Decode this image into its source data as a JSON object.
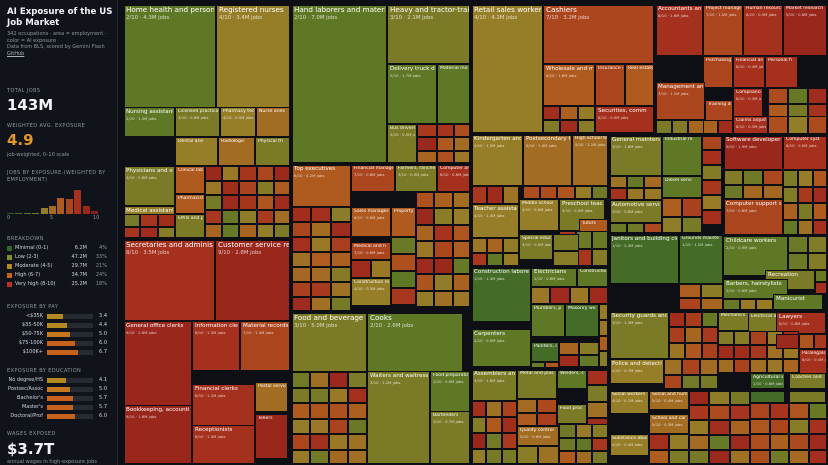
{
  "sidebar": {
    "title": "AI Exposure of the US Job Market",
    "description": "342 occupations · area = employment · color = AI exposure",
    "source": "Data from BLS, scored by Gemini Flash",
    "github": "GitHub",
    "total_jobs_label": "TOTAL JOBS",
    "total_jobs_value": "143M",
    "weighted_label": "WEIGHTED AVG. EXPOSURE",
    "weighted_value": "4.9",
    "weighted_note": "job-weighted, 0–10 scale",
    "histogram_label": "JOBS BY EXPOSURE (WEIGHTED BY EMPLOYMENT)",
    "histogram_axis": [
      "0",
      "5",
      "10"
    ],
    "histogram_values": [
      0.2,
      0.5,
      0.6,
      1.0,
      6.0,
      9.0,
      17.0,
      16.0,
      26.0,
      8.5,
      2.8
    ],
    "breakdown_label": "BREAKDOWN",
    "breakdown": [
      {
        "name": "Minimal (0-1)",
        "jobs": "6.2M",
        "pct": "4%",
        "color": "#2f6a2a"
      },
      {
        "name": "Low (2-3)",
        "jobs": "47.2M",
        "pct": "33%",
        "color": "#7e8f2c"
      },
      {
        "name": "Moderate (4-5)",
        "jobs": "29.7M",
        "pct": "21%",
        "color": "#b38a22"
      },
      {
        "name": "High (6-7)",
        "jobs": "34.7M",
        "pct": "24%",
        "color": "#c7621c"
      },
      {
        "name": "Very high (8-10)",
        "jobs": "25.2M",
        "pct": "18%",
        "color": "#b8311e"
      }
    ],
    "pay_label": "EXPOSURE BY PAY",
    "pay": [
      {
        "name": "<$35K",
        "value": "3.4"
      },
      {
        "name": "$35-50K",
        "value": "4.4"
      },
      {
        "name": "$50-75K",
        "value": "5.0"
      },
      {
        "name": "$75-100K",
        "value": "6.0"
      },
      {
        "name": "$100K+",
        "value": "6.7"
      }
    ],
    "education_label": "EXPOSURE BY EDUCATION",
    "education": [
      {
        "name": "No degree/HS",
        "value": "4.1"
      },
      {
        "name": "Postsec/Assoc",
        "value": "5.0"
      },
      {
        "name": "Bachelor's",
        "value": "5.7"
      },
      {
        "name": "Master's",
        "value": "5.7"
      },
      {
        "name": "Doctoral/Prof",
        "value": "6.0"
      }
    ],
    "wages_label": "WAGES EXPOSED",
    "wages_value": "$3.7T",
    "wages_note": "annual wages in high-exposure jobs"
  },
  "colors": {
    "minimal": "#2f6a2a",
    "low": "#7e8f2c",
    "moderate": "#b38a22",
    "high": "#c7621c",
    "very_high": "#b8311e",
    "cell_borders": "#0d0f14",
    "background": "#0d0f14"
  },
  "treemap": {
    "occupations": [
      {
        "name": "Home health and personal care aides",
        "sub": "2/10 · 4.3M jobs",
        "score": 2
      },
      {
        "name": "Registered nurses",
        "sub": "4/10 · 3.4M jobs",
        "score": 4
      },
      {
        "name": "Nursing assistants",
        "sub": "2/10 · 1.3M jobs",
        "score": 2
      },
      {
        "name": "Licensed practical",
        "sub": "3/10 · 0.6M jobs",
        "score": 3
      },
      {
        "name": "Pharmacy tec",
        "sub": "4/10 · 0.5M jobs",
        "score": 4
      },
      {
        "name": "Nurse anes",
        "sub": "",
        "score": 5
      },
      {
        "name": "Dental assi",
        "sub": "",
        "score": 4
      },
      {
        "name": "Radiologic",
        "sub": "",
        "score": 5
      },
      {
        "name": "Physical th",
        "sub": "",
        "score": 3
      },
      {
        "name": "Physicians and surgeons",
        "sub": "3/10 · 0.8M jobs",
        "score": 3
      },
      {
        "name": "Clinical lab",
        "sub": "",
        "score": 6
      },
      {
        "name": "Pharmacist",
        "sub": "",
        "score": 6
      },
      {
        "name": "Medical assistants",
        "sub": "4/10 · 0.7M jobs",
        "score": 4
      },
      {
        "name": "EMTs and p",
        "sub": "",
        "score": 3
      },
      {
        "name": "Hand laborers and material movers",
        "sub": "2/10 · 7.0M jobs",
        "score": 2
      },
      {
        "name": "Heavy and tractor-trailer truck drivers",
        "sub": "3/10 · 2.1M jobs",
        "score": 3
      },
      {
        "name": "Delivery truck driver",
        "sub": "2/10 · 1.7M jobs",
        "score": 2
      },
      {
        "name": "Material mo",
        "sub": "",
        "score": 2
      },
      {
        "name": "Bus drivers",
        "sub": "3/10 · 0.5M jobs",
        "score": 3
      },
      {
        "name": "Top executives",
        "sub": "6/10 · 4.2M jobs",
        "score": 6
      },
      {
        "name": "Financial managers",
        "sub": "7/10 · 0.8M jobs",
        "score": 7
      },
      {
        "name": "Farmers, ranchers",
        "sub": "3/10 · 0.9M jobs",
        "score": 3
      },
      {
        "name": "Computer an",
        "sub": "8/10 · 0.6M jobs",
        "score": 8
      },
      {
        "name": "Sales managers",
        "sub": "6/10 · 0.6M jobs",
        "score": 6
      },
      {
        "name": "Property, r",
        "sub": "",
        "score": 6
      },
      {
        "name": "Medical and h",
        "sub": "7/10 · 0.6M jobs",
        "score": 7
      },
      {
        "name": "Construction m",
        "sub": "4/10 · 0.5M jobs",
        "score": 4
      },
      {
        "name": "Retail sales workers",
        "sub": "4/10 · 4.2M jobs",
        "score": 4
      },
      {
        "name": "Cashiers",
        "sub": "7/10 · 3.2M jobs",
        "score": 7
      },
      {
        "name": "Wholesale and manufacturing",
        "sub": "6/10 · 1.6M jobs",
        "score": 6
      },
      {
        "name": "Insurance s",
        "sub": "",
        "score": 7
      },
      {
        "name": "Real estate",
        "sub": "",
        "score": 6
      },
      {
        "name": "Securities, comm",
        "sub": "8/10 · 0.5M jobs",
        "score": 8
      },
      {
        "name": "Accountants and auditors",
        "sub": "8/10 · 1.6M jobs",
        "score": 8
      },
      {
        "name": "Project management",
        "sub": "7/10 · 1.0M jobs",
        "score": 7
      },
      {
        "name": "Human resources",
        "sub": "8/10 · 0.9M jobs",
        "score": 8
      },
      {
        "name": "Market research",
        "sub": "9/10 · 0.8M jobs",
        "score": 9
      },
      {
        "name": "Purchasing",
        "sub": "",
        "score": 7
      },
      {
        "name": "Financial ana",
        "sub": "8/10 · 0.4M jobs",
        "score": 8
      },
      {
        "name": "Personal fi",
        "sub": "",
        "score": 8
      },
      {
        "name": "Management analysts",
        "sub": "7/10 · 1.1M jobs",
        "score": 7
      },
      {
        "name": "Compliance o",
        "sub": "8/10 · 0.3M jobs",
        "score": 8
      },
      {
        "name": "Training and",
        "sub": "",
        "score": 7
      },
      {
        "name": "Claims adjust",
        "sub": "8/10 · 0.3M jobs",
        "score": 8
      },
      {
        "name": "Secretaries and administrative assistants",
        "sub": "8/10 · 3.5M jobs",
        "score": 8
      },
      {
        "name": "Customer service representatives",
        "sub": "9/10 · 2.8M jobs",
        "score": 9
      },
      {
        "name": "General office clerks",
        "sub": "9/10 · 2.6M jobs",
        "score": 9
      },
      {
        "name": "Information clerks",
        "sub": "8/10 · 1.5M jobs",
        "score": 8
      },
      {
        "name": "Material recording",
        "sub": "7/10 · 1.4M jobs",
        "score": 7
      },
      {
        "name": "Financial clerks",
        "sub": "8/10 · 1.2M jobs",
        "score": 8
      },
      {
        "name": "Postal servic",
        "sub": "",
        "score": 5
      },
      {
        "name": "Bookkeeping, accounting",
        "sub": "9/10 · 1.6M jobs",
        "score": 9
      },
      {
        "name": "Receptionists",
        "sub": "8/10 · 1.0M jobs",
        "score": 8
      },
      {
        "name": "Tellers",
        "sub": "",
        "score": 9
      },
      {
        "name": "Food and beverage serving workers",
        "sub": "3/10 · 5.0M jobs",
        "score": 3
      },
      {
        "name": "Cooks",
        "sub": "2/10 · 2.6M jobs",
        "score": 2
      },
      {
        "name": "Waiters and waitresses",
        "sub": "3/10 · 2.2M jobs",
        "score": 3
      },
      {
        "name": "Food preparation",
        "sub": "2/10 · 0.9M jobs",
        "score": 2
      },
      {
        "name": "Bartenders",
        "sub": "3/10 · 0.7M jobs",
        "score": 3
      },
      {
        "name": "Kindergarten and elementary",
        "sub": "4/10 · 1.5M jobs",
        "score": 4
      },
      {
        "name": "Postsecondary teachers",
        "sub": "5/10 · 1.4M jobs",
        "score": 5
      },
      {
        "name": "High school te",
        "sub": "5/10 · 1.1M jobs",
        "score": 5
      },
      {
        "name": "Teacher assistants",
        "sub": "4/10 · 1.4M jobs",
        "score": 4
      },
      {
        "name": "Middle school",
        "sub": "4/10 · 0.6M jobs",
        "score": 4
      },
      {
        "name": "Preschool teachers",
        "sub": "3/10 · 0.5M jobs",
        "score": 3
      },
      {
        "name": "Special educat",
        "sub": "3/10 · 0.5M jobs",
        "score": 3
      },
      {
        "name": "Tutors",
        "sub": "",
        "score": 6
      },
      {
        "name": "General maintenance",
        "sub": "3/10 · 1.6M jobs",
        "score": 3
      },
      {
        "name": "Industrial m",
        "sub": "",
        "score": 2
      },
      {
        "name": "Diesel servi",
        "sub": "",
        "score": 2
      },
      {
        "name": "Automotive service",
        "sub": "3/10 · 0.8M jobs",
        "score": 3
      },
      {
        "name": "Software developers",
        "sub": "9/10 · 1.9M jobs",
        "score": 9
      },
      {
        "name": "Computer syst",
        "sub": "8/10 · 0.5M jobs",
        "score": 8
      },
      {
        "name": "Computer support s",
        "sub": "7/10 · 0.8M jobs",
        "score": 7
      },
      {
        "name": "Construction laborers",
        "sub": "1/10 · 1.4M jobs",
        "score": 1
      },
      {
        "name": "Electricians",
        "sub": "2/10 · 0.8M jobs",
        "score": 2
      },
      {
        "name": "Construction",
        "sub": "",
        "score": 2
      },
      {
        "name": "Carpenters",
        "sub": "2/10 · 0.9M jobs",
        "score": 2
      },
      {
        "name": "Plumbers, p",
        "sub": "",
        "score": 2
      },
      {
        "name": "Masonry wo",
        "sub": "",
        "score": 1
      },
      {
        "name": "Painters, co",
        "sub": "",
        "score": 1
      },
      {
        "name": "Janitors and building cleaners",
        "sub": "1/10 · 2.4M jobs",
        "score": 1
      },
      {
        "name": "Grounds mainte",
        "sub": "1/10 · 1.2M jobs",
        "score": 1
      },
      {
        "name": "Childcare workers",
        "sub": "2/10 · 0.9M jobs",
        "score": 2
      },
      {
        "name": "Recreation",
        "sub": "",
        "score": 3
      },
      {
        "name": "Barbers, hairstylists",
        "sub": "2/10 · 0.6M jobs",
        "score": 2
      },
      {
        "name": "Manicurist",
        "sub": "",
        "score": 2
      },
      {
        "name": "Security guards and",
        "sub": "3/10 · 1.3M jobs",
        "score": 3
      },
      {
        "name": "Police and detectives",
        "sub": "4/10 · 0.7M jobs",
        "score": 4
      },
      {
        "name": "Mechanics",
        "sub": "",
        "score": 3
      },
      {
        "name": "Electrical a",
        "sub": "",
        "score": 3
      },
      {
        "name": "Lawyers",
        "sub": "8/10 · 0.8M jobs",
        "score": 8
      },
      {
        "name": "Paralegals and",
        "sub": "8/10 · 0.4M jobs",
        "score": 8
      },
      {
        "name": "Assemblers and",
        "sub": "3/10 · 1.8M jobs",
        "score": 3
      },
      {
        "name": "Metal and plas",
        "sub": "",
        "score": 3
      },
      {
        "name": "Welders, c",
        "sub": "",
        "score": 2
      },
      {
        "name": "Food proc",
        "sub": "",
        "score": 3
      },
      {
        "name": "Quality control",
        "sub": "5/10 · 0.6M jobs",
        "score": 5
      },
      {
        "name": "Social workers",
        "sub": "4/10 · 0.7M jobs",
        "score": 4
      },
      {
        "name": "Social and hum",
        "sub": "5/10 · 0.4M jobs",
        "score": 5
      },
      {
        "name": "School and car",
        "sub": "5/10 · 0.3M jobs",
        "score": 5
      },
      {
        "name": "Substance abuse",
        "sub": "4/10 · 0.4M jobs",
        "score": 4
      },
      {
        "name": "Agricultural w",
        "sub": "1/10 · 0.6M jobs",
        "score": 1
      },
      {
        "name": "Coaches and",
        "sub": "",
        "score": 3
      }
    ]
  }
}
